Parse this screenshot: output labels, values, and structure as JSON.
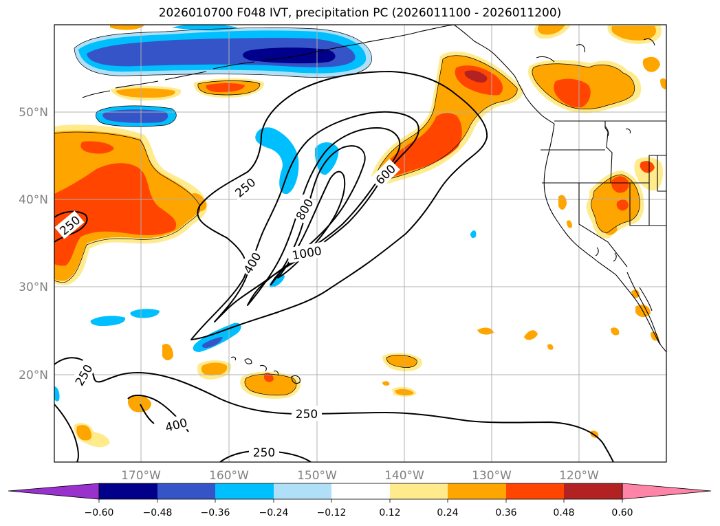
{
  "title": "2026010700 F048 IVT, precipitation PC (2026011100 - 2026011200)",
  "lat_labels": [
    "50°N",
    "40°N",
    "30°N",
    "20°N"
  ],
  "lon_labels": [
    "170°W",
    "160°W",
    "150°W",
    "140°W",
    "130°W",
    "120°W"
  ],
  "contour_labels": {
    "c250_a": "250",
    "c250_b": "250",
    "c250_c": "250",
    "c250_d": "250",
    "c250_e": "250",
    "c400_a": "400",
    "c400_b": "400",
    "c600": "600",
    "c800": "800",
    "c1000": "1000"
  },
  "colorbar": {
    "ticks": [
      "−0.60",
      "−0.48",
      "−0.36",
      "−0.24",
      "−0.12",
      "0.12",
      "0.24",
      "0.36",
      "0.48",
      "0.60"
    ],
    "colors": [
      "#9932cc",
      "#00008b",
      "#3454c8",
      "#00bfff",
      "#b0e0f8",
      "#ffffff",
      "#ffeb8c",
      "#ffa500",
      "#ff4500",
      "#b22222",
      "#ff85a8"
    ]
  },
  "colors": {
    "neg_weak": "#b0e0f8",
    "neg_mid": "#00bfff",
    "neg_strong": "#3454c8",
    "neg_max": "#00008b",
    "pos_weak": "#ffeb8c",
    "pos_mid": "#ffa500",
    "pos_strong": "#ff4500",
    "pos_max": "#b22222"
  }
}
